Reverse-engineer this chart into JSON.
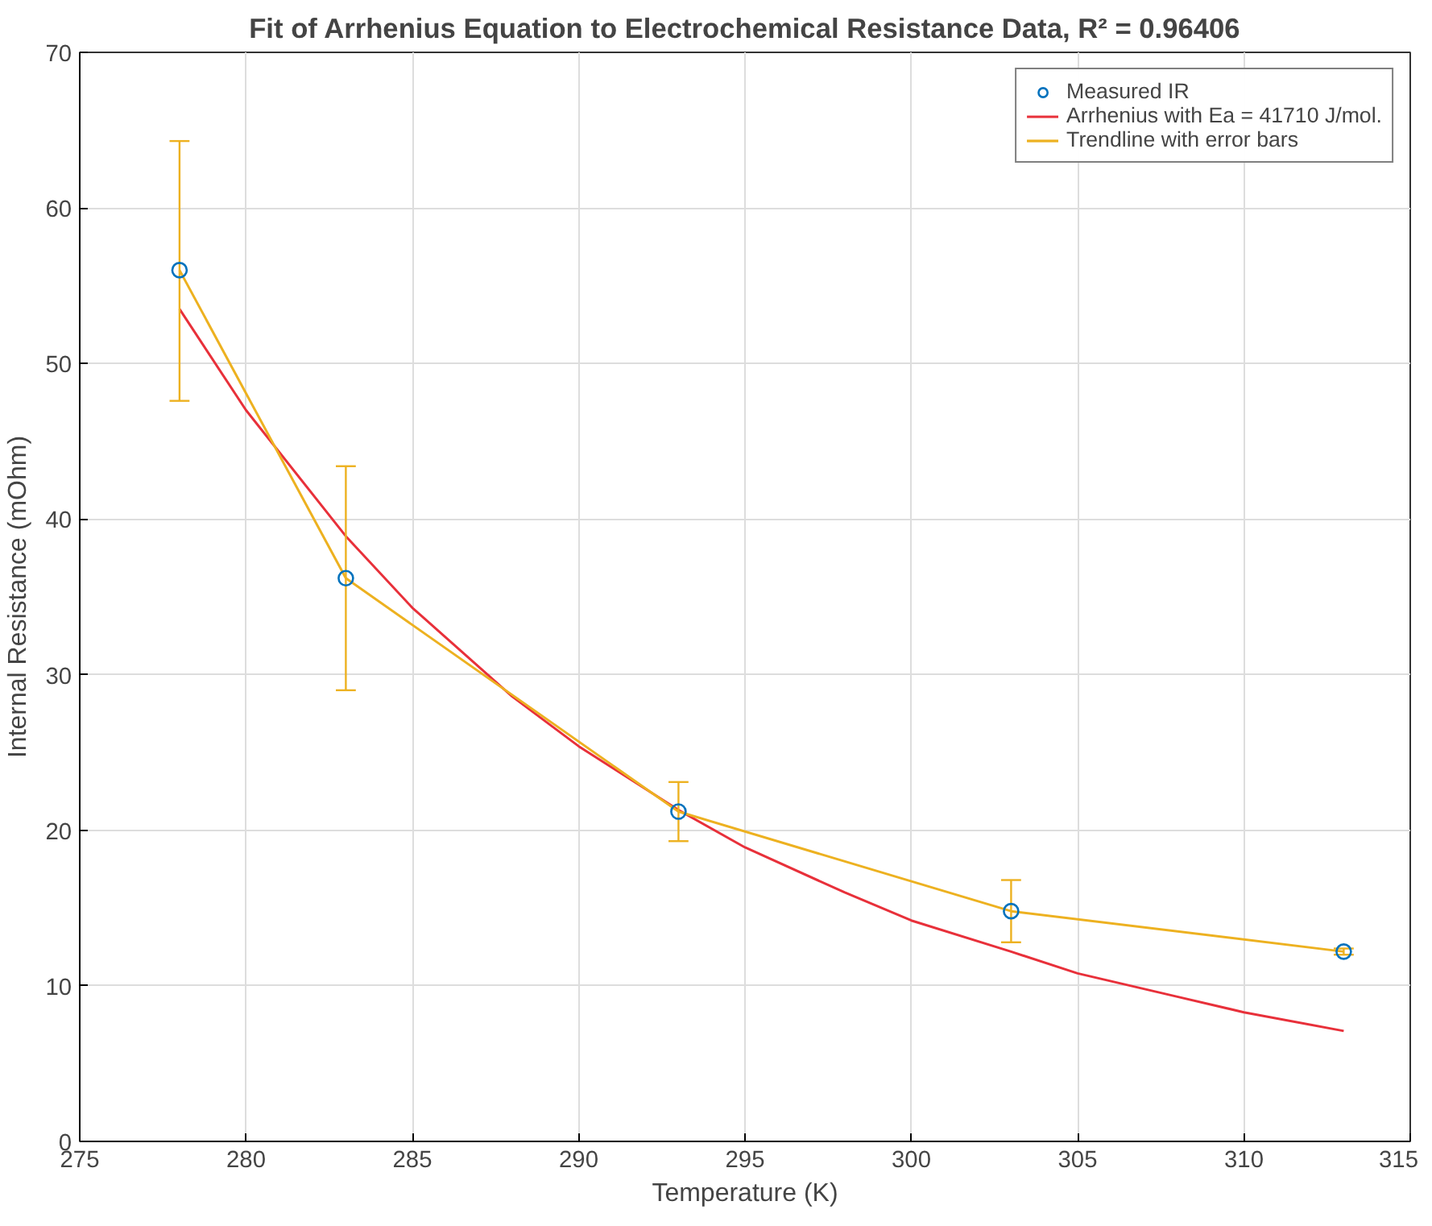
{
  "chart_data": {
    "type": "line",
    "title": "Fit of Arrhenius Equation to Electrochemical Resistance Data, R² = 0.96406",
    "xlabel": "Temperature (K)",
    "ylabel": "Internal Resistance (mOhm)",
    "xlim": [
      275,
      315
    ],
    "xticks": [
      275,
      280,
      285,
      290,
      295,
      300,
      305,
      310,
      315
    ],
    "ylim": [
      0,
      70
    ],
    "yticks": [
      0,
      10,
      20,
      30,
      40,
      50,
      60,
      70
    ],
    "grid": true,
    "legend": "top right",
    "series": [
      {
        "name": "Measured IR",
        "type": "scatter",
        "marker": "circle",
        "color": "#0072bd",
        "x": [
          278,
          283,
          293,
          303,
          313
        ],
        "values": [
          56,
          36.2,
          21.2,
          14.8,
          12.2
        ]
      },
      {
        "name": "Arrhenius with Ea = 41710 J/mol.",
        "color": "#e8303a",
        "x": [
          278,
          280,
          283,
          285,
          288,
          290,
          293,
          295,
          298,
          300,
          303,
          305,
          308,
          310,
          313
        ],
        "values": [
          53.5,
          47.0,
          38.9,
          34.3,
          28.6,
          25.4,
          21.3,
          18.9,
          16.0,
          14.2,
          12.2,
          10.8,
          9.3,
          8.3,
          7.1
        ]
      },
      {
        "name": "Trendline with error bars",
        "color": "#edb120",
        "x": [
          278,
          283,
          293,
          303,
          313
        ],
        "values": [
          56,
          36.2,
          21.2,
          14.8,
          12.2
        ],
        "errors": [
          [
            47.6,
            64.3
          ],
          [
            29.0,
            43.4
          ],
          [
            19.3,
            23.1
          ],
          [
            12.8,
            16.8
          ],
          [
            12.0,
            12.4
          ]
        ]
      }
    ]
  }
}
